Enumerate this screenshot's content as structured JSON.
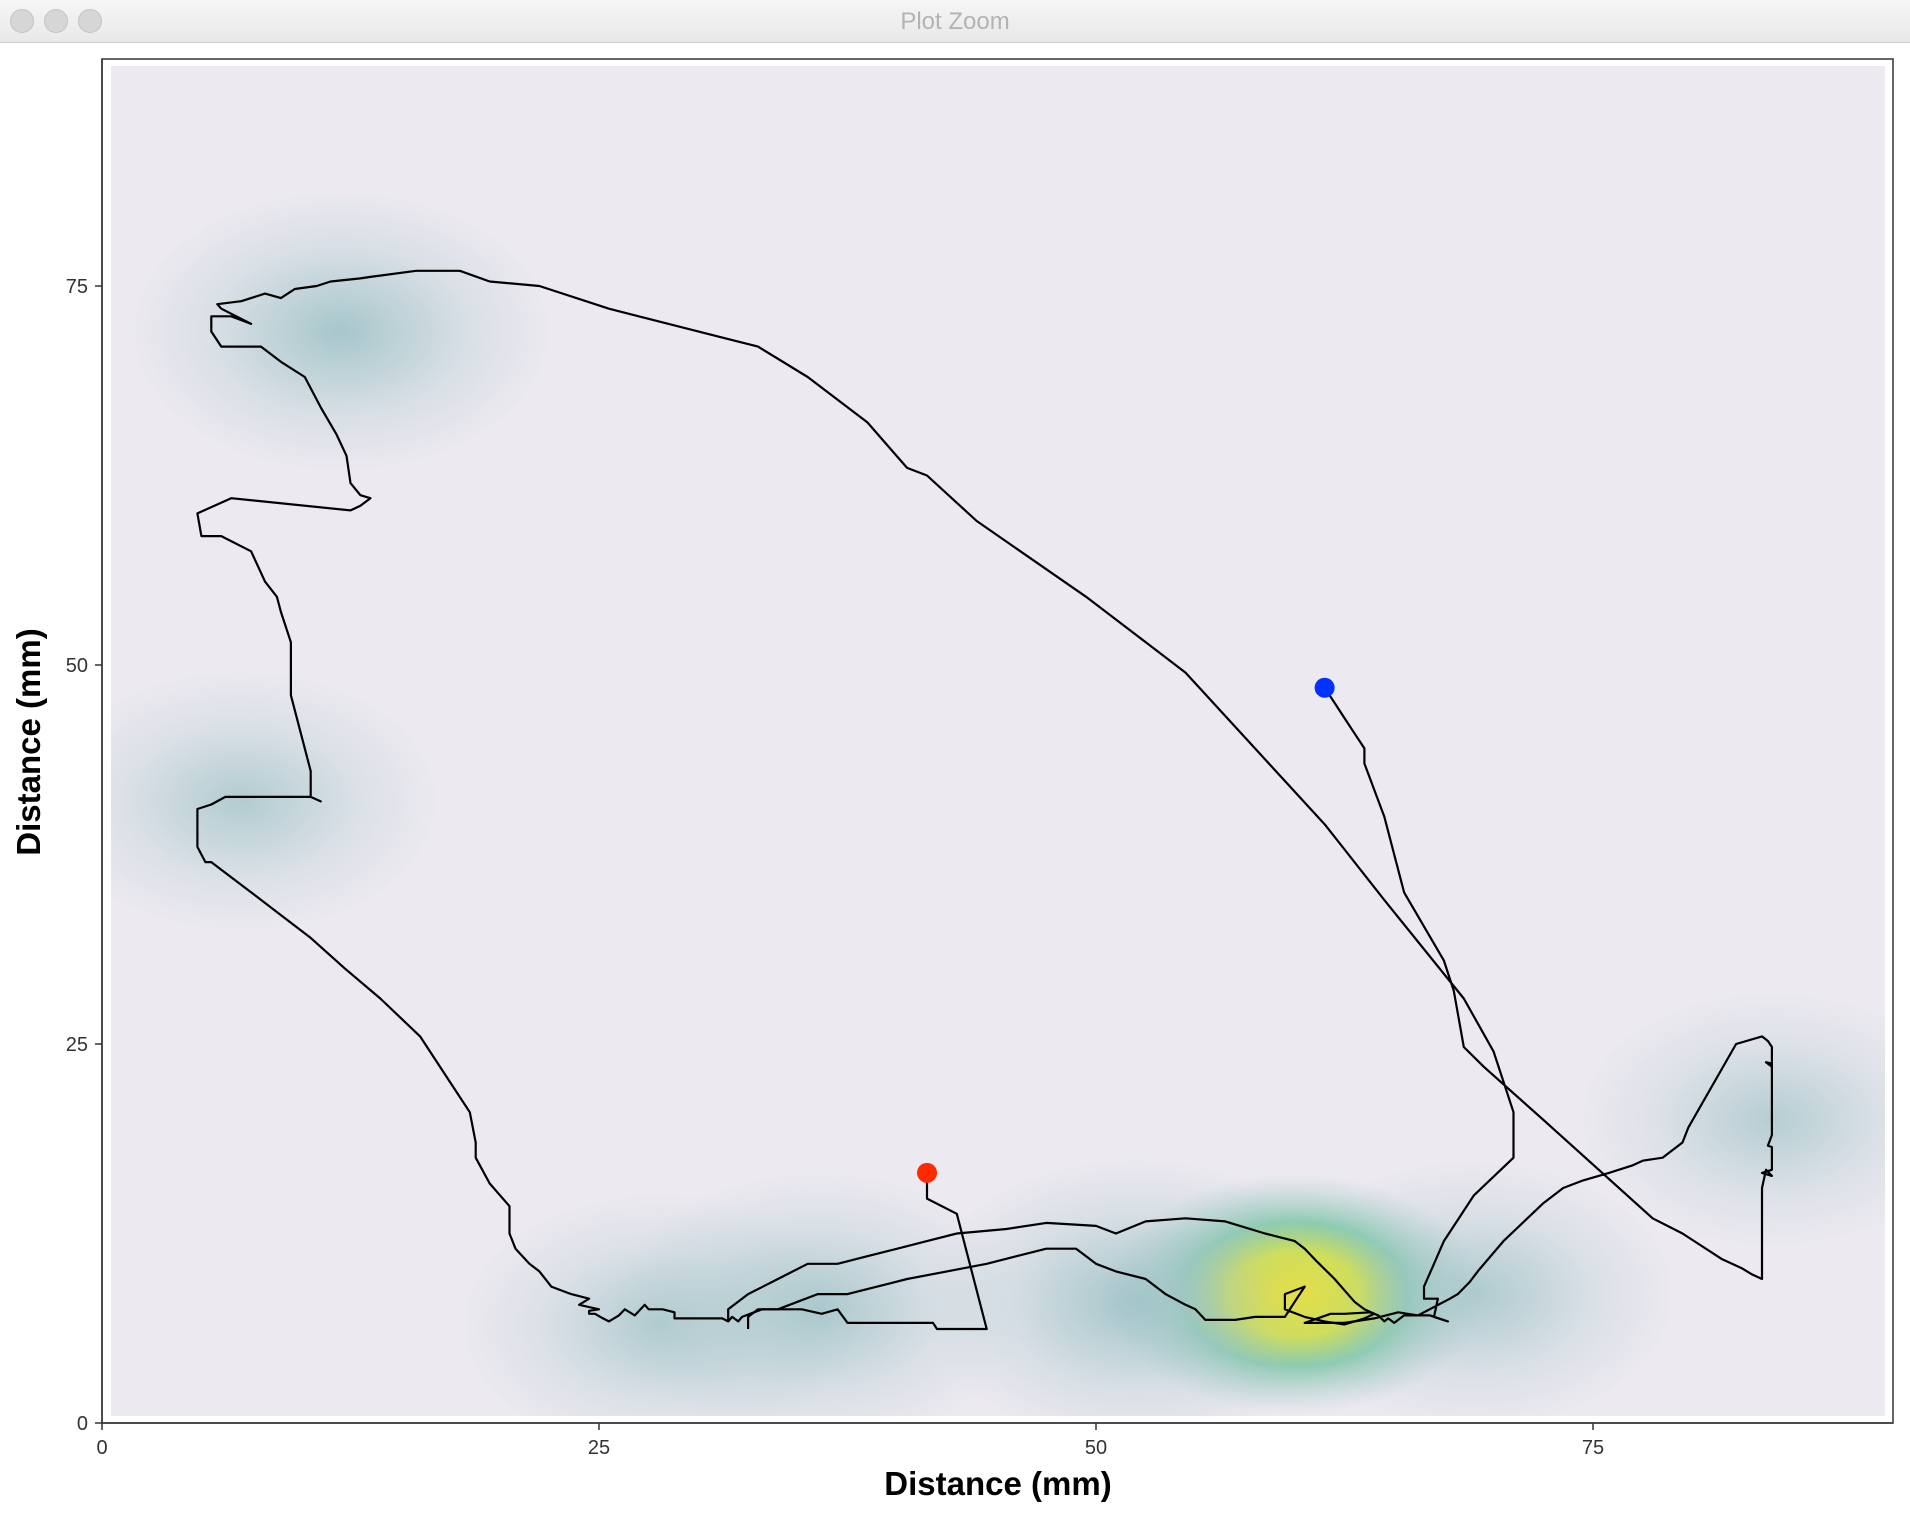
{
  "window": {
    "title": "Plot Zoom"
  },
  "chart_data": {
    "type": "line",
    "title": "",
    "xlabel": "Distance (mm)",
    "ylabel": "Distance (mm)",
    "xlim": [
      0,
      90
    ],
    "ylim": [
      0,
      90
    ],
    "x_ticks": [
      0,
      25,
      50,
      75
    ],
    "y_ticks": [
      0,
      25,
      50,
      75
    ],
    "x_tick_labels": [
      "0",
      "25",
      "50",
      "75"
    ],
    "y_tick_labels": [
      "0",
      "25",
      "50",
      "75"
    ],
    "grid": false,
    "background_layer": {
      "type": "heatmap",
      "description_colors": {
        "low": "#ece9f0",
        "mid": "#a3c5c9",
        "high": "#fae51d"
      },
      "density_peaks": [
        {
          "x": 60,
          "y": 8.5,
          "level": 1.0
        },
        {
          "x": 52,
          "y": 8.0,
          "level": 0.55
        },
        {
          "x": 36,
          "y": 7.5,
          "level": 0.45
        },
        {
          "x": 28,
          "y": 6.5,
          "level": 0.35
        },
        {
          "x": 69,
          "y": 8.5,
          "level": 0.4
        },
        {
          "x": 12,
          "y": 72,
          "level": 0.5
        },
        {
          "x": 7,
          "y": 41,
          "level": 0.35
        },
        {
          "x": 84,
          "y": 20,
          "level": 0.3
        }
      ]
    },
    "series": [
      {
        "color": "#000000",
        "points": [
          [
            41.5,
            16.5
          ],
          [
            41.5,
            14.8
          ],
          [
            43,
            13.8
          ],
          [
            44.5,
            6.2
          ],
          [
            42,
            6.2
          ],
          [
            41.8,
            6.6
          ],
          [
            40.8,
            6.6
          ],
          [
            37.5,
            6.6
          ],
          [
            37,
            7.5
          ],
          [
            36.2,
            7.2
          ],
          [
            35.2,
            7.5
          ],
          [
            33.2,
            7.5
          ],
          [
            32.2,
            7
          ],
          [
            32,
            6.7
          ],
          [
            31.7,
            7
          ],
          [
            31.5,
            6.7
          ],
          [
            31.2,
            6.9
          ],
          [
            28.8,
            6.9
          ],
          [
            28.8,
            7.3
          ],
          [
            28.2,
            7.5
          ],
          [
            27.5,
            7.5
          ],
          [
            27.3,
            7.8
          ],
          [
            26.8,
            7.1
          ],
          [
            26.3,
            7.5
          ],
          [
            26,
            7.1
          ],
          [
            25.5,
            6.7
          ],
          [
            25.2,
            6.9
          ],
          [
            24.8,
            7.2
          ],
          [
            24.5,
            7.2
          ],
          [
            24.5,
            7.4
          ],
          [
            25,
            7.5
          ],
          [
            24,
            7.8
          ],
          [
            24.5,
            8.2
          ],
          [
            23.6,
            8.5
          ],
          [
            23,
            8.8
          ],
          [
            22.6,
            9
          ],
          [
            22,
            10
          ],
          [
            21.5,
            10.5
          ],
          [
            20.8,
            11.5
          ],
          [
            20.5,
            12.5
          ],
          [
            20.5,
            14.3
          ],
          [
            19.5,
            15.8
          ],
          [
            18.8,
            17.5
          ],
          [
            18.8,
            18.5
          ],
          [
            18.5,
            20.5
          ],
          [
            17.5,
            22.5
          ],
          [
            16,
            25.5
          ],
          [
            14,
            28
          ],
          [
            12.2,
            30
          ],
          [
            10.5,
            32
          ],
          [
            9,
            33.5
          ],
          [
            7.8,
            34.7
          ],
          [
            6,
            36.5
          ],
          [
            5.5,
            37
          ],
          [
            5.2,
            37
          ],
          [
            4.8,
            38
          ],
          [
            4.8,
            40.5
          ],
          [
            5.5,
            40.8
          ],
          [
            6.2,
            41.3
          ],
          [
            10.5,
            41.3
          ],
          [
            11,
            41
          ],
          [
            10.5,
            41.3
          ],
          [
            10.5,
            43
          ],
          [
            10,
            45.5
          ],
          [
            9.5,
            48
          ],
          [
            9.5,
            51.5
          ],
          [
            9,
            53.5
          ],
          [
            8.8,
            54.5
          ],
          [
            8.2,
            55.5
          ],
          [
            7.5,
            57.5
          ],
          [
            6,
            58.5
          ],
          [
            5,
            58.5
          ],
          [
            4.8,
            60
          ],
          [
            6.5,
            61
          ],
          [
            12.5,
            60.2
          ],
          [
            13,
            60.5
          ],
          [
            13.5,
            61
          ],
          [
            13,
            61.2
          ],
          [
            12.5,
            62
          ],
          [
            12.3,
            63.8
          ],
          [
            11.8,
            65.2
          ],
          [
            11,
            67
          ],
          [
            10.2,
            69
          ],
          [
            9,
            70
          ],
          [
            8,
            71
          ],
          [
            6,
            71
          ],
          [
            5.5,
            72
          ],
          [
            5.5,
            73
          ],
          [
            6.5,
            73
          ],
          [
            7.5,
            72.5
          ],
          [
            6,
            73.5
          ],
          [
            5.8,
            73.8
          ],
          [
            7,
            74
          ],
          [
            8.2,
            74.5
          ],
          [
            9,
            74.2
          ],
          [
            9.7,
            74.8
          ],
          [
            10.8,
            75
          ],
          [
            11.5,
            75.3
          ],
          [
            13,
            75.5
          ],
          [
            13.5,
            75.6
          ],
          [
            15.8,
            76
          ],
          [
            18,
            76
          ],
          [
            19.5,
            75.3
          ],
          [
            22,
            75
          ],
          [
            25.5,
            73.5
          ],
          [
            31.5,
            71.5
          ],
          [
            33,
            71
          ],
          [
            35.5,
            69
          ],
          [
            38.5,
            66
          ],
          [
            40.5,
            63
          ],
          [
            41.5,
            62.5
          ],
          [
            44,
            59.5
          ],
          [
            49.5,
            54.5
          ],
          [
            51,
            53
          ],
          [
            54.5,
            49.5
          ],
          [
            58,
            44.5
          ],
          [
            61.5,
            39.5
          ],
          [
            62.7,
            37.5
          ],
          [
            64.5,
            34.5
          ],
          [
            68.5,
            28
          ],
          [
            70,
            24.5
          ],
          [
            71,
            20.5
          ],
          [
            71,
            17.5
          ],
          [
            69,
            15
          ],
          [
            67.5,
            12
          ],
          [
            67,
            10.5
          ],
          [
            66.5,
            9
          ],
          [
            66.5,
            8.2
          ],
          [
            67.2,
            8.2
          ],
          [
            67,
            7
          ],
          [
            67.7,
            6.7
          ],
          [
            66.8,
            7.1
          ],
          [
            65.5,
            7.1
          ],
          [
            65,
            6.6
          ],
          [
            64.7,
            6.9
          ],
          [
            64.5,
            6.7
          ],
          [
            64.2,
            7.1
          ],
          [
            63.8,
            7.3
          ],
          [
            62.5,
            7.2
          ],
          [
            61.8,
            7.2
          ],
          [
            60.5,
            6.6
          ],
          [
            62.5,
            6.6
          ],
          [
            64,
            6.9
          ],
          [
            65.2,
            7.3
          ],
          [
            66.2,
            7.1
          ],
          [
            67.8,
            8.2
          ],
          [
            68.2,
            8.5
          ],
          [
            68.8,
            9.3
          ],
          [
            69.2,
            10
          ],
          [
            70.5,
            12
          ],
          [
            72.5,
            14.5
          ],
          [
            73.5,
            15.5
          ],
          [
            74.5,
            16
          ],
          [
            75.8,
            16.5
          ],
          [
            77,
            17
          ],
          [
            77.5,
            17.3
          ],
          [
            78.5,
            17.5
          ],
          [
            79,
            18
          ],
          [
            79.5,
            18.5
          ],
          [
            79.8,
            19.5
          ],
          [
            82.2,
            25
          ],
          [
            83.5,
            25.5
          ],
          [
            83.8,
            25.2
          ],
          [
            84,
            24.8
          ],
          [
            84,
            23.5
          ],
          [
            83.7,
            23.8
          ],
          [
            84,
            23.7
          ],
          [
            84,
            19
          ],
          [
            83.8,
            18.3
          ],
          [
            84,
            18.2
          ],
          [
            84,
            16.7
          ],
          [
            83.5,
            16.5
          ],
          [
            84,
            16.3
          ],
          [
            83.7,
            16.7
          ],
          [
            83.5,
            15.5
          ],
          [
            83.5,
            9.5
          ],
          [
            83,
            9.8
          ],
          [
            82.5,
            10.2
          ],
          [
            81.5,
            10.8
          ],
          [
            79.5,
            12.5
          ],
          [
            78,
            13.5
          ],
          [
            72.5,
            20
          ],
          [
            69.5,
            23.5
          ],
          [
            68.5,
            24.8
          ],
          [
            68,
            28.5
          ],
          [
            67.5,
            30.5
          ],
          [
            65.5,
            35
          ],
          [
            64.5,
            40
          ],
          [
            63.5,
            43.5
          ],
          [
            63.5,
            44.5
          ],
          [
            63,
            45.5
          ],
          [
            62.5,
            46.5
          ],
          [
            62,
            47.5
          ],
          [
            61.5,
            48.5
          ]
        ]
      },
      {
        "color": "#000000",
        "points": [
          [
            31.5,
            6.7
          ],
          [
            31.5,
            7.5
          ],
          [
            32.5,
            8.5
          ],
          [
            34,
            9.5
          ],
          [
            35.5,
            10.5
          ],
          [
            37,
            10.5
          ],
          [
            38.5,
            11
          ],
          [
            40,
            11.5
          ],
          [
            41.5,
            12
          ],
          [
            43,
            12.5
          ],
          [
            45.5,
            12.8
          ],
          [
            47.5,
            13.2
          ],
          [
            50,
            13
          ],
          [
            51,
            12.5
          ],
          [
            52.5,
            13.3
          ],
          [
            54.5,
            13.5
          ],
          [
            56.5,
            13.3
          ],
          [
            58.5,
            12.5
          ],
          [
            60,
            12
          ],
          [
            60.5,
            11.5
          ],
          [
            61,
            10.8
          ],
          [
            62,
            9.5
          ],
          [
            63,
            8
          ],
          [
            63.5,
            7.5
          ],
          [
            64,
            7.2
          ],
          [
            63.5,
            6.9
          ],
          [
            62.5,
            6.5
          ],
          [
            61.5,
            6.7
          ],
          [
            60.5,
            7
          ],
          [
            59.5,
            7.5
          ],
          [
            59.5,
            8.5
          ],
          [
            60.5,
            9
          ],
          [
            60,
            8
          ],
          [
            59.5,
            7
          ],
          [
            58,
            7
          ],
          [
            57,
            6.8
          ],
          [
            55.5,
            6.8
          ],
          [
            55,
            7.5
          ],
          [
            54.5,
            7.8
          ],
          [
            53.5,
            8.5
          ],
          [
            52.5,
            9.5
          ],
          [
            51,
            10
          ],
          [
            50,
            10.5
          ],
          [
            49.5,
            11
          ],
          [
            49,
            11.5
          ],
          [
            47.5,
            11.5
          ],
          [
            46,
            11
          ],
          [
            44.5,
            10.5
          ],
          [
            42.5,
            10
          ],
          [
            40.5,
            9.5
          ],
          [
            39,
            9
          ],
          [
            37.5,
            8.5
          ],
          [
            36,
            8.5
          ],
          [
            35,
            8
          ],
          [
            34,
            7.5
          ],
          [
            33,
            7.5
          ],
          [
            32.5,
            7
          ],
          [
            32.5,
            6.2
          ]
        ]
      }
    ],
    "markers": [
      {
        "x": 41.5,
        "y": 16.5,
        "color": "#ff2a00"
      },
      {
        "x": 61.5,
        "y": 48.5,
        "color": "#0033ff"
      }
    ]
  }
}
